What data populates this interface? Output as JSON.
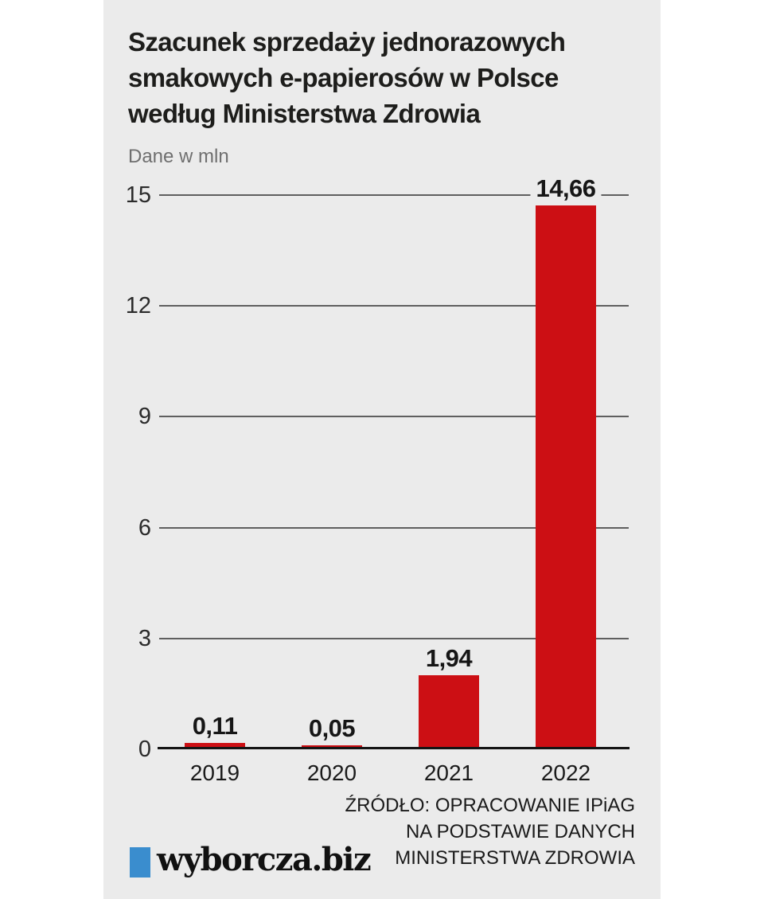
{
  "page": {
    "background": "#ffffff",
    "panel_background": "#ebebeb"
  },
  "header": {
    "title": "Szacunek sprzedaży jednorazowych\nsmakowych e-papierosów w Polsce\nwedług Ministerstwa Zdrowia",
    "subtitle": "Dane w mln"
  },
  "chart_data": {
    "type": "bar",
    "title": "Szacunek sprzedaży jednorazowych smakowych e-papierosów w Polsce według Ministerstwa Zdrowia",
    "subtitle": "Dane w mln",
    "categories": [
      "2019",
      "2020",
      "2021",
      "2022"
    ],
    "values": [
      0.11,
      0.05,
      1.94,
      14.66
    ],
    "value_labels": [
      "0,11",
      "0,05",
      "1,94",
      "14,66"
    ],
    "xlabel": "",
    "ylabel": "Dane w mln",
    "ylim": [
      0,
      15
    ],
    "yticks": [
      0,
      3,
      6,
      9,
      12,
      15
    ],
    "grid": true,
    "legend_position": "none",
    "bar_color": "#cc0f14",
    "grid_color": "#5f5f5f",
    "baseline_color": "#141414"
  },
  "source": {
    "text": "ŹRÓDŁO: OPRACOWANIE IPiAG\nNA PODSTAWIE DANYCH\nMINISTERSTWA ZDROWIA"
  },
  "footer_logo": {
    "text": "wyborcza.biz",
    "square_color": "#3a8dce"
  }
}
